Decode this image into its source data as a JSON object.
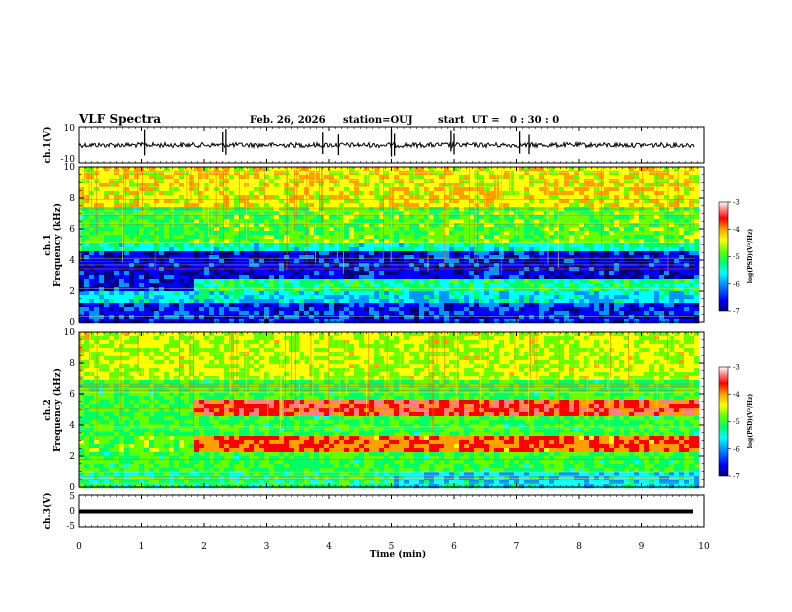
{
  "header": {
    "title": "VLF Spectra",
    "date": "Feb. 26, 2026",
    "station": "station=OUJ",
    "start_time": "start  UT =   0 : 30 : 0"
  },
  "chart_data": [
    {
      "type": "line",
      "name": "ch1-waveform",
      "ylabel": "ch.1(V)",
      "ylim": [
        -10,
        10
      ],
      "y_ticks": [
        "10",
        "-10"
      ],
      "baseline": 0,
      "note": "broadband waveform trace near 0 V with impulsive spikes"
    },
    {
      "type": "heatmap",
      "name": "ch1-spectrogram",
      "ylabel_channel": "ch.1",
      "ylabel": "Frequency (kHz)",
      "ylim": [
        0,
        10
      ],
      "y_ticks": [
        "0",
        "2",
        "4",
        "6",
        "8",
        "10"
      ],
      "colorbar": {
        "label": "log(PSD)(V²/Hz)",
        "range": [
          -7,
          -3
        ],
        "ticks": [
          "-3",
          "-4",
          "-5",
          "-6",
          "-7"
        ]
      }
    },
    {
      "type": "heatmap",
      "name": "ch2-spectrogram",
      "ylabel_channel": "ch.2",
      "ylabel": "Frequency (kHz)",
      "ylim": [
        0,
        10
      ],
      "y_ticks": [
        "0",
        "2",
        "4",
        "6",
        "8",
        "10"
      ],
      "colorbar": {
        "label": "log(PSD)(V²/Hz)",
        "range": [
          -7,
          -3
        ],
        "ticks": [
          "-3",
          "-4",
          "-5",
          "-6",
          "-7"
        ]
      }
    },
    {
      "type": "line",
      "name": "ch3-waveform",
      "ylabel": "ch.3(V)",
      "ylim": [
        -5,
        5
      ],
      "y_ticks": [
        "5",
        "0",
        "-5"
      ],
      "baseline": -1.5,
      "note": "flat trace"
    }
  ],
  "x_axis": {
    "label": "Time (min)",
    "xlim": [
      0,
      10
    ],
    "ticks": [
      "0",
      "1",
      "2",
      "3",
      "4",
      "5",
      "6",
      "7",
      "8",
      "9",
      "10"
    ],
    "data_end": 9.85
  },
  "colors": {
    "scale": [
      "#00007a",
      "#0000ff",
      "#0096ff",
      "#00ffff",
      "#00ff64",
      "#64ff00",
      "#ffff00",
      "#ffa000",
      "#ff0000",
      "#ff8080",
      "#ffffff"
    ]
  }
}
